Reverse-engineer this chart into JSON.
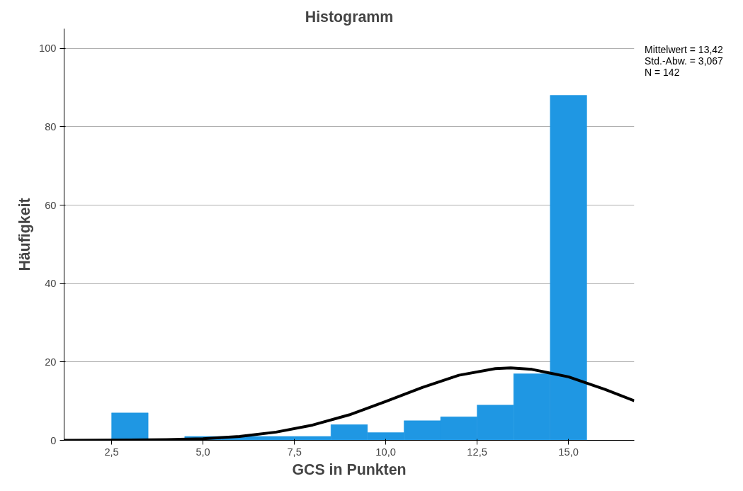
{
  "chart_data": {
    "type": "histogram",
    "title": "Histogramm",
    "xlabel": "GCS in Punkten",
    "ylabel": "Häufigkeit",
    "bins": [
      2.5,
      3.5,
      4.5,
      5.5,
      6.5,
      7.5,
      8.5,
      9.5,
      10.5,
      11.5,
      12.5,
      13.5,
      14.5,
      15.5
    ],
    "values": [
      7,
      0,
      1,
      1,
      1,
      1,
      4,
      2,
      5,
      6,
      9,
      17,
      88
    ],
    "color": "#1f97e3",
    "series": [
      {
        "type": "line",
        "color": "#000000",
        "x": [
          1.2,
          3,
          4,
          5,
          6,
          7,
          8,
          9,
          10,
          11,
          12,
          13,
          13.42,
          14,
          15,
          16,
          16.8
        ],
        "values": [
          0.0,
          0.1,
          0.2,
          0.4,
          1.0,
          2.1,
          3.9,
          6.5,
          9.9,
          13.5,
          16.6,
          18.3,
          18.5,
          18.1,
          16.2,
          13.0,
          10.1
        ]
      }
    ],
    "xlim": [
      1.2,
      16.8
    ],
    "ylim": [
      0,
      105
    ],
    "xticks": [
      {
        "value": 2.5,
        "label": "2,5"
      },
      {
        "value": 5,
        "label": "5,0"
      },
      {
        "value": 7.5,
        "label": "7,5"
      },
      {
        "value": 10,
        "label": "10,0"
      },
      {
        "value": 12.5,
        "label": "12,5"
      },
      {
        "value": 15,
        "label": "15,0"
      }
    ],
    "yticks": [
      0,
      20,
      40,
      60,
      80,
      100
    ],
    "grid": "y",
    "annotations": [
      "Mittelwert = 13,42",
      "Std.-Abw. = 3,067",
      "N = 142"
    ]
  }
}
